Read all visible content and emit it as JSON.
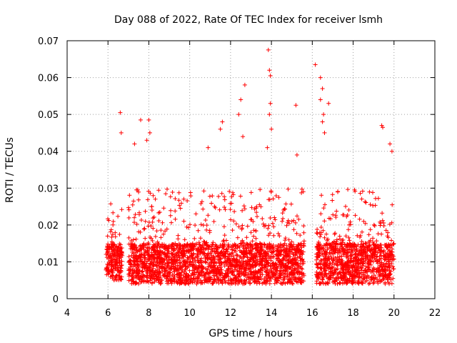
{
  "chart_data": {
    "type": "scatter",
    "title": "Day 088 of 2022, Rate Of TEC Index for receiver lsmh",
    "xlabel": "GPS time / hours",
    "ylabel": "ROTI / TECUs",
    "xlim": [
      4,
      22
    ],
    "ylim": [
      0,
      0.07
    ],
    "xticks": [
      4,
      6,
      8,
      10,
      12,
      14,
      16,
      18,
      20,
      22
    ],
    "yticks": [
      0,
      0.01,
      0.02,
      0.03,
      0.04,
      0.05,
      0.06,
      0.07
    ],
    "ytick_labels": [
      "0",
      "0.01",
      "0.02",
      "0.03",
      "0.04",
      "0.05",
      "0.06",
      "0.07"
    ],
    "grid": true,
    "marker": "+",
    "color": "#ff0000",
    "series": [
      {
        "name": "ROTI",
        "segments": [
          {
            "x_start": 5.9,
            "x_end": 6.7,
            "y_low": 0.005,
            "y_high": 0.026
          },
          {
            "x_start": 7.0,
            "x_end": 15.6,
            "y_low": 0.004,
            "y_high": 0.03
          },
          {
            "x_start": 16.2,
            "x_end": 20.0,
            "y_low": 0.004,
            "y_high": 0.03
          }
        ],
        "peaks": [
          {
            "x": 6.6,
            "y": 0.0505
          },
          {
            "x": 6.65,
            "y": 0.045
          },
          {
            "x": 7.6,
            "y": 0.0485
          },
          {
            "x": 8.0,
            "y": 0.0485
          },
          {
            "x": 8.05,
            "y": 0.045
          },
          {
            "x": 7.9,
            "y": 0.043
          },
          {
            "x": 7.3,
            "y": 0.042
          },
          {
            "x": 10.9,
            "y": 0.041
          },
          {
            "x": 11.6,
            "y": 0.048
          },
          {
            "x": 11.5,
            "y": 0.046
          },
          {
            "x": 12.5,
            "y": 0.054
          },
          {
            "x": 12.7,
            "y": 0.058
          },
          {
            "x": 12.4,
            "y": 0.05
          },
          {
            "x": 12.6,
            "y": 0.044
          },
          {
            "x": 13.85,
            "y": 0.0675
          },
          {
            "x": 13.9,
            "y": 0.062
          },
          {
            "x": 13.95,
            "y": 0.0605
          },
          {
            "x": 13.95,
            "y": 0.053
          },
          {
            "x": 13.9,
            "y": 0.05
          },
          {
            "x": 14.0,
            "y": 0.046
          },
          {
            "x": 13.8,
            "y": 0.041
          },
          {
            "x": 15.2,
            "y": 0.0525
          },
          {
            "x": 15.25,
            "y": 0.039
          },
          {
            "x": 16.15,
            "y": 0.0635
          },
          {
            "x": 16.4,
            "y": 0.06
          },
          {
            "x": 16.5,
            "y": 0.057
          },
          {
            "x": 16.4,
            "y": 0.054
          },
          {
            "x": 16.55,
            "y": 0.05
          },
          {
            "x": 16.5,
            "y": 0.048
          },
          {
            "x": 16.8,
            "y": 0.053
          },
          {
            "x": 16.6,
            "y": 0.045
          },
          {
            "x": 19.4,
            "y": 0.047
          },
          {
            "x": 19.45,
            "y": 0.0465
          },
          {
            "x": 19.8,
            "y": 0.042
          },
          {
            "x": 19.9,
            "y": 0.04
          }
        ]
      }
    ]
  }
}
